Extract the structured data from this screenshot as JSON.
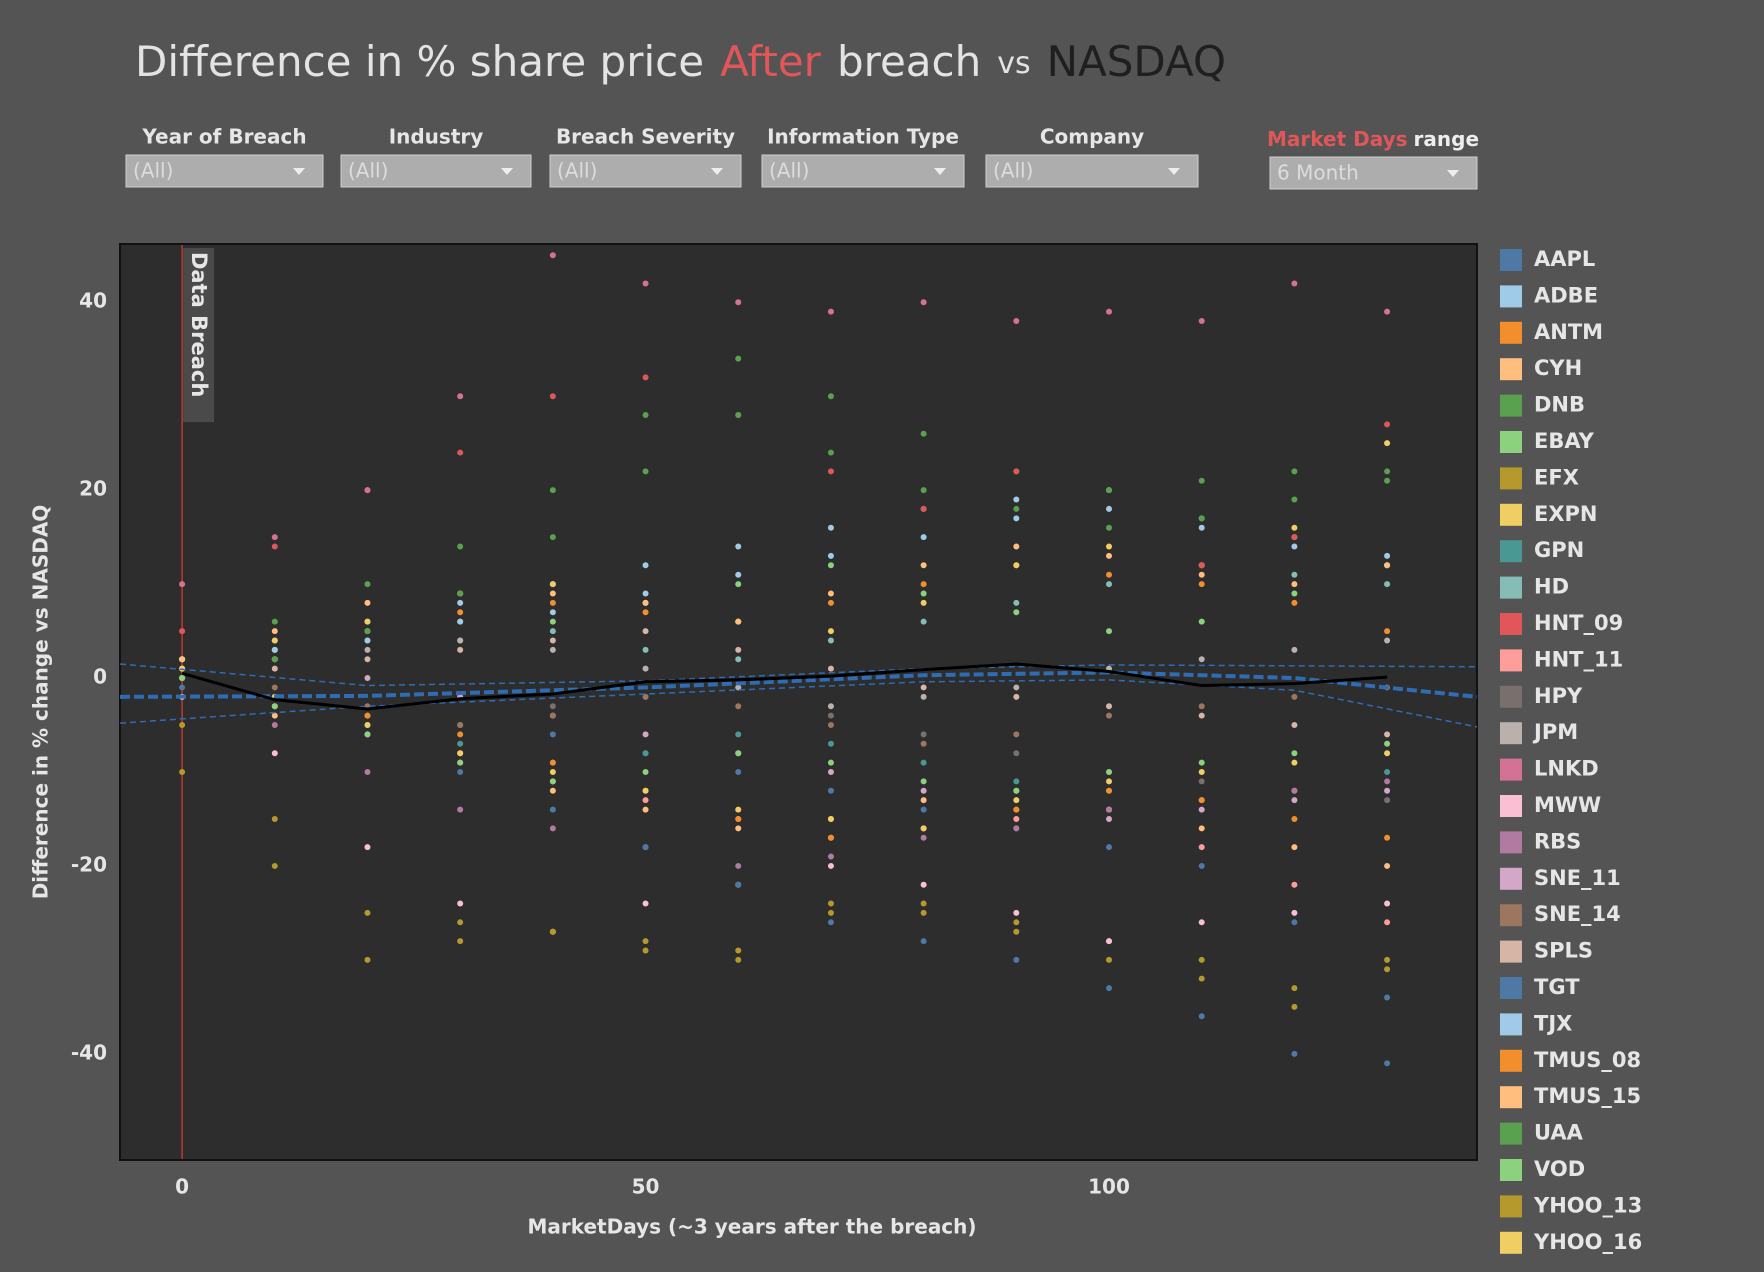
{
  "chart_data": {
    "type": "scatter",
    "title": [
      {
        "text": "Difference in % share price",
        "color": "#e3e3e3",
        "size": "large"
      },
      {
        "text": "After",
        "color": "#e15759",
        "size": "large"
      },
      {
        "text": "breach",
        "color": "#e3e3e3",
        "size": "large"
      },
      {
        "text": "vs",
        "color": "#e3e3e3",
        "size": "small"
      },
      {
        "text": "NASDAQ",
        "color": "#1f1f1f",
        "size": "large"
      }
    ],
    "filters": [
      {
        "label": "Year of Breach",
        "value": "(All)"
      },
      {
        "label": "Industry",
        "value": "(All)"
      },
      {
        "label": "Breach Severity",
        "value": "(All)"
      },
      {
        "label": "Information Type",
        "value": "(All)"
      },
      {
        "label": "Company",
        "value": "(All)"
      }
    ],
    "range_filter": {
      "label": [
        {
          "text": "Market Days",
          "color": "#e15759"
        },
        {
          "text": "range",
          "color": "#eeeeee"
        }
      ],
      "value": "6 Month"
    },
    "xlabel": "MarketDays (~3 years after the breach)",
    "ylabel": "Difference in % change vs NASDAQ",
    "xlim": [
      -6.7,
      139.7
    ],
    "ylim": [
      -51.3,
      46.2
    ],
    "xticks": [
      0,
      50,
      100
    ],
    "yticks": [
      40,
      20,
      0,
      -20,
      -40
    ],
    "grid": false,
    "legend": "right",
    "annotation": {
      "x": 0,
      "label": "Data Breach",
      "color": "#c0392b"
    },
    "x": [
      0,
      10,
      20,
      30,
      40,
      50,
      60,
      70,
      80,
      90,
      100,
      110,
      120,
      130
    ],
    "series": [
      {
        "name": "AAPL",
        "color": "#4e79a7",
        "values": [
          0,
          -2,
          -4,
          -5,
          -6,
          -8,
          -10,
          -12,
          -14,
          -16,
          -18,
          -20,
          -26,
          -34
        ]
      },
      {
        "name": "ADBE",
        "color": "#a0cbe8",
        "values": [
          2,
          4,
          6,
          8,
          10,
          12,
          14,
          16,
          18,
          19,
          20,
          17,
          15,
          12
        ]
      },
      {
        "name": "ANTM",
        "color": "#f28e2b",
        "values": [
          1,
          3,
          5,
          7,
          8,
          7,
          6,
          8,
          10,
          12,
          11,
          10,
          8,
          5
        ]
      },
      {
        "name": "CYH",
        "color": "#ffbe7d",
        "values": [
          0,
          -4,
          -6,
          -8,
          -12,
          -14,
          -16,
          -15,
          -13,
          -12,
          -14,
          -16,
          -18,
          -20
        ]
      },
      {
        "name": "DNB",
        "color": "#59a14f",
        "values": [
          0,
          6,
          10,
          14,
          20,
          28,
          34,
          30,
          26,
          22,
          20,
          21,
          22,
          21
        ]
      },
      {
        "name": "EBAY",
        "color": "#8cd17d",
        "values": [
          1,
          3,
          5,
          4,
          6,
          8,
          10,
          12,
          9,
          7,
          5,
          6,
          9,
          12
        ]
      },
      {
        "name": "EFX",
        "color": "#b6992d",
        "values": [
          -5,
          -15,
          -25,
          -26,
          -27,
          -28,
          -29,
          -25,
          -24,
          -26,
          -28,
          -30,
          -33,
          -30
        ]
      },
      {
        "name": "EXPN",
        "color": "#f1ce63",
        "values": [
          2,
          4,
          6,
          9,
          10,
          8,
          6,
          5,
          8,
          12,
          14,
          12,
          16,
          25
        ]
      },
      {
        "name": "GPN",
        "color": "#499894",
        "values": [
          0,
          -3,
          -5,
          -7,
          -9,
          -8,
          -6,
          -7,
          -9,
          -11,
          -12,
          -13,
          -12,
          -10
        ]
      },
      {
        "name": "HD",
        "color": "#86bcb6",
        "values": [
          1,
          2,
          4,
          6,
          5,
          3,
          2,
          4,
          6,
          8,
          10,
          12,
          11,
          10
        ]
      },
      {
        "name": "HNT_09",
        "color": "#e15759",
        "values": [
          5,
          14,
          20,
          24,
          30,
          32,
          28,
          22,
          18,
          22,
          18,
          12,
          15,
          27
        ]
      },
      {
        "name": "HNT_11",
        "color": "#ff9d9a",
        "values": [
          0,
          -3,
          -6,
          -9,
          -11,
          -13,
          -15,
          -17,
          -16,
          -15,
          -14,
          -18,
          -22,
          -26
        ]
      },
      {
        "name": "HPY",
        "color": "#79706e",
        "values": [
          0,
          -2,
          -4,
          -5,
          -3,
          -2,
          -1,
          -4,
          -6,
          -8,
          -10,
          -11,
          -12,
          -13
        ]
      },
      {
        "name": "JPM",
        "color": "#bab0ac",
        "values": [
          0,
          2,
          3,
          4,
          3,
          1,
          -1,
          -3,
          -2,
          -1,
          1,
          2,
          3,
          4
        ]
      },
      {
        "name": "LNKD",
        "color": "#d37295",
        "values": [
          10,
          15,
          20,
          30,
          45,
          42,
          40,
          39,
          40,
          38,
          39,
          38,
          42,
          39
        ]
      },
      {
        "name": "MWW",
        "color": "#fabfd2",
        "values": [
          -2,
          -8,
          -18,
          -24,
          -27,
          -24,
          -22,
          -20,
          -22,
          -25,
          -28,
          -26,
          -25,
          -24
        ]
      },
      {
        "name": "RBS",
        "color": "#b07aa1",
        "values": [
          0,
          -5,
          -10,
          -14,
          -16,
          -18,
          -20,
          -19,
          -17,
          -16,
          -14,
          -13,
          -12,
          -11
        ]
      },
      {
        "name": "SNE_11",
        "color": "#d4a6c8",
        "values": [
          1,
          2,
          0,
          -2,
          -4,
          -6,
          -8,
          -10,
          -12,
          -14,
          -15,
          -14,
          -13,
          -12
        ]
      },
      {
        "name": "SNE_14",
        "color": "#9d7660",
        "values": [
          0,
          -1,
          -3,
          -5,
          -4,
          -2,
          -3,
          -5,
          -7,
          -6,
          -4,
          -3,
          -2,
          -1
        ]
      },
      {
        "name": "SPLS",
        "color": "#d7b5a6",
        "values": [
          0,
          1,
          2,
          3,
          4,
          5,
          3,
          1,
          -1,
          -2,
          -3,
          -4,
          -5,
          -6
        ]
      },
      {
        "name": "TGT",
        "color": "#4e79a7",
        "values": [
          -1,
          -3,
          -6,
          -10,
          -14,
          -18,
          -22,
          -26,
          -28,
          -30,
          -33,
          -36,
          -40,
          -41
        ]
      },
      {
        "name": "TJX",
        "color": "#a0cbe8",
        "values": [
          2,
          3,
          4,
          6,
          7,
          9,
          11,
          13,
          15,
          17,
          18,
          16,
          14,
          13
        ]
      },
      {
        "name": "TMUS_08",
        "color": "#f28e2b",
        "values": [
          0,
          -2,
          -4,
          -6,
          -9,
          -12,
          -15,
          -17,
          -16,
          -14,
          -12,
          -13,
          -15,
          -17
        ]
      },
      {
        "name": "TMUS_15",
        "color": "#ffbe7d",
        "values": [
          2,
          5,
          8,
          9,
          9,
          8,
          6,
          9,
          12,
          14,
          13,
          11,
          10,
          12
        ]
      },
      {
        "name": "UAA",
        "color": "#59a14f",
        "values": [
          0,
          2,
          5,
          9,
          15,
          22,
          28,
          24,
          20,
          18,
          16,
          17,
          19,
          22
        ]
      },
      {
        "name": "VOD",
        "color": "#8cd17d",
        "values": [
          0,
          -3,
          -6,
          -9,
          -11,
          -10,
          -8,
          -9,
          -11,
          -12,
          -10,
          -9,
          -8,
          -7
        ]
      },
      {
        "name": "YHOO_13",
        "color": "#b6992d",
        "values": [
          -10,
          -20,
          -30,
          -28,
          -27,
          -29,
          -30,
          -24,
          -25,
          -27,
          -30,
          -32,
          -35,
          -31
        ]
      },
      {
        "name": "YHOO_16",
        "color": "#f1ce63",
        "values": [
          1,
          -2,
          -5,
          -8,
          -10,
          -12,
          -14,
          -15,
          -16,
          -13,
          -11,
          -10,
          -9,
          -8
        ]
      }
    ],
    "average": {
      "color": "#000000",
      "values": [
        0.5,
        -2.3,
        -3.3,
        -2.2,
        -1.7,
        -0.4,
        -0.2,
        0.2,
        0.9,
        1.5,
        0.7,
        -0.8,
        -0.6,
        0.1
      ]
    },
    "trend": {
      "color": "#2e6db4",
      "x": [
        -6.7,
        20,
        50,
        80,
        100,
        120,
        139.7
      ],
      "values": [
        -2.0,
        -1.9,
        -1.0,
        0.3,
        0.6,
        0.0,
        -2.0
      ],
      "upper": [
        1.5,
        -0.8,
        -0.3,
        1.0,
        1.4,
        1.3,
        1.2
      ],
      "lower": [
        -4.8,
        -3.0,
        -1.7,
        -0.4,
        -0.2,
        -1.3,
        -5.2
      ]
    }
  }
}
